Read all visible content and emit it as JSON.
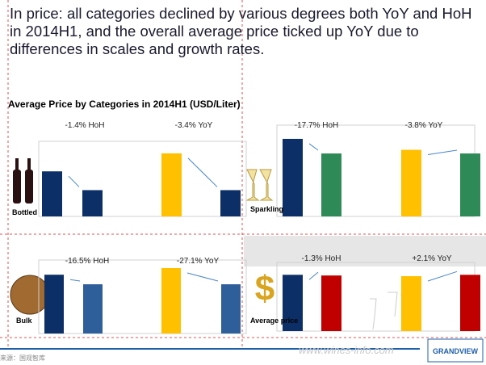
{
  "slide_title": "In price: all categories declined by various degrees both YoY and HoH in 2014H1, and the overall average price ticked up YoY due to differences in scales and growth rates.",
  "section_title": "Average Price by Categories in 2014H1 (USD/Liter)",
  "footer": {
    "source": "来源：国观智库",
    "logo": "GRANDVIEW",
    "watermark": "www.wines-info.com"
  },
  "chart_data": [
    {
      "type": "bar",
      "label": "Bottled",
      "annotations": [
        "-1.4% HoH",
        "-3.4% YoY"
      ],
      "categories": [
        null,
        null,
        null,
        null
      ],
      "values": [
        6.0,
        3.5,
        8.4,
        3.5
      ],
      "colors": [
        "#0b2f66",
        "#0b2f66",
        "#ffc000",
        "#0b2f66"
      ],
      "ylim": [
        0,
        10
      ]
    },
    {
      "type": "bar",
      "label": "Sparkling",
      "annotations": [
        "-17.7% HoH",
        "-3.8% YoY"
      ],
      "categories": [
        null,
        null,
        null,
        null
      ],
      "values": [
        8.5,
        6.9,
        7.3,
        6.9
      ],
      "colors": [
        "#0b2f66",
        "#2e8b57",
        "#ffc000",
        "#2e8b57"
      ],
      "ylim": [
        0,
        10
      ]
    },
    {
      "type": "bar",
      "label": "Bulk",
      "annotations": [
        "-16.5% HoH",
        "-27.1% YoY"
      ],
      "categories": [
        null,
        null,
        null,
        null
      ],
      "values": [
        8.0,
        6.7,
        8.9,
        6.7
      ],
      "colors": [
        "#0b2f66",
        "#2e5f9a",
        "#ffc000",
        "#2e5f9a"
      ],
      "ylim": [
        0,
        10
      ]
    },
    {
      "type": "bar",
      "label": "Average price",
      "annotations": [
        "-1.3% HoH",
        "+2.1% YoY"
      ],
      "categories": [
        null,
        null,
        null,
        null
      ],
      "values": [
        8.2,
        8.1,
        8.0,
        8.2
      ],
      "colors": [
        "#0b2f66",
        "#c00000",
        "#ffc000",
        "#c00000"
      ],
      "ylim": [
        0,
        10
      ]
    }
  ]
}
